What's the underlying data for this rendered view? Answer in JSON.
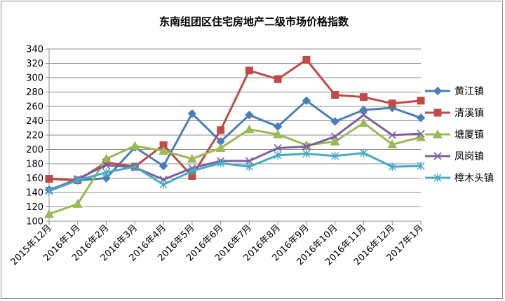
{
  "chart_data": {
    "type": "line",
    "title": "东南组团区住宅房地产二级市场价格指数",
    "xlabel": "",
    "ylabel": "",
    "ylim": [
      100,
      340
    ],
    "yticks": [
      100,
      120,
      140,
      160,
      180,
      200,
      220,
      240,
      260,
      280,
      300,
      320,
      340
    ],
    "grid": true,
    "legend_position": "right",
    "categories": [
      "2015年12月",
      "2016年1月",
      "2016年2月",
      "2016年3月",
      "2016年4月",
      "2016年5月",
      "2016年6月",
      "2016年7月",
      "2016年8月",
      "2016年9月",
      "2016年10月",
      "2016年11月",
      "2016年12月",
      "2017年1月"
    ],
    "series": [
      {
        "name": "黄江镇",
        "color": "#4a7ebb",
        "marker": "diamond",
        "values": [
          144,
          157,
          160,
          203,
          177,
          250,
          211,
          248,
          232,
          268,
          239,
          255,
          258,
          244
        ]
      },
      {
        "name": "清溪镇",
        "color": "#be4b48",
        "marker": "square",
        "values": [
          159,
          157,
          182,
          176,
          206,
          163,
          227,
          310,
          298,
          325,
          276,
          273,
          264,
          268
        ]
      },
      {
        "name": "塘厦镇",
        "color": "#98b954",
        "marker": "triangle",
        "values": [
          110,
          124,
          187,
          205,
          198,
          187,
          202,
          228,
          221,
          206,
          211,
          237,
          207,
          217
        ]
      },
      {
        "name": "凤岗镇",
        "color": "#7d60a0",
        "marker": "x",
        "values": [
          143,
          159,
          178,
          175,
          158,
          174,
          184,
          184,
          202,
          204,
          218,
          248,
          220,
          222
        ]
      },
      {
        "name": "樟木头镇",
        "color": "#46aac5",
        "marker": "star",
        "values": [
          142,
          157,
          168,
          176,
          151,
          170,
          181,
          176,
          192,
          194,
          191,
          195,
          176,
          177
        ]
      }
    ]
  }
}
